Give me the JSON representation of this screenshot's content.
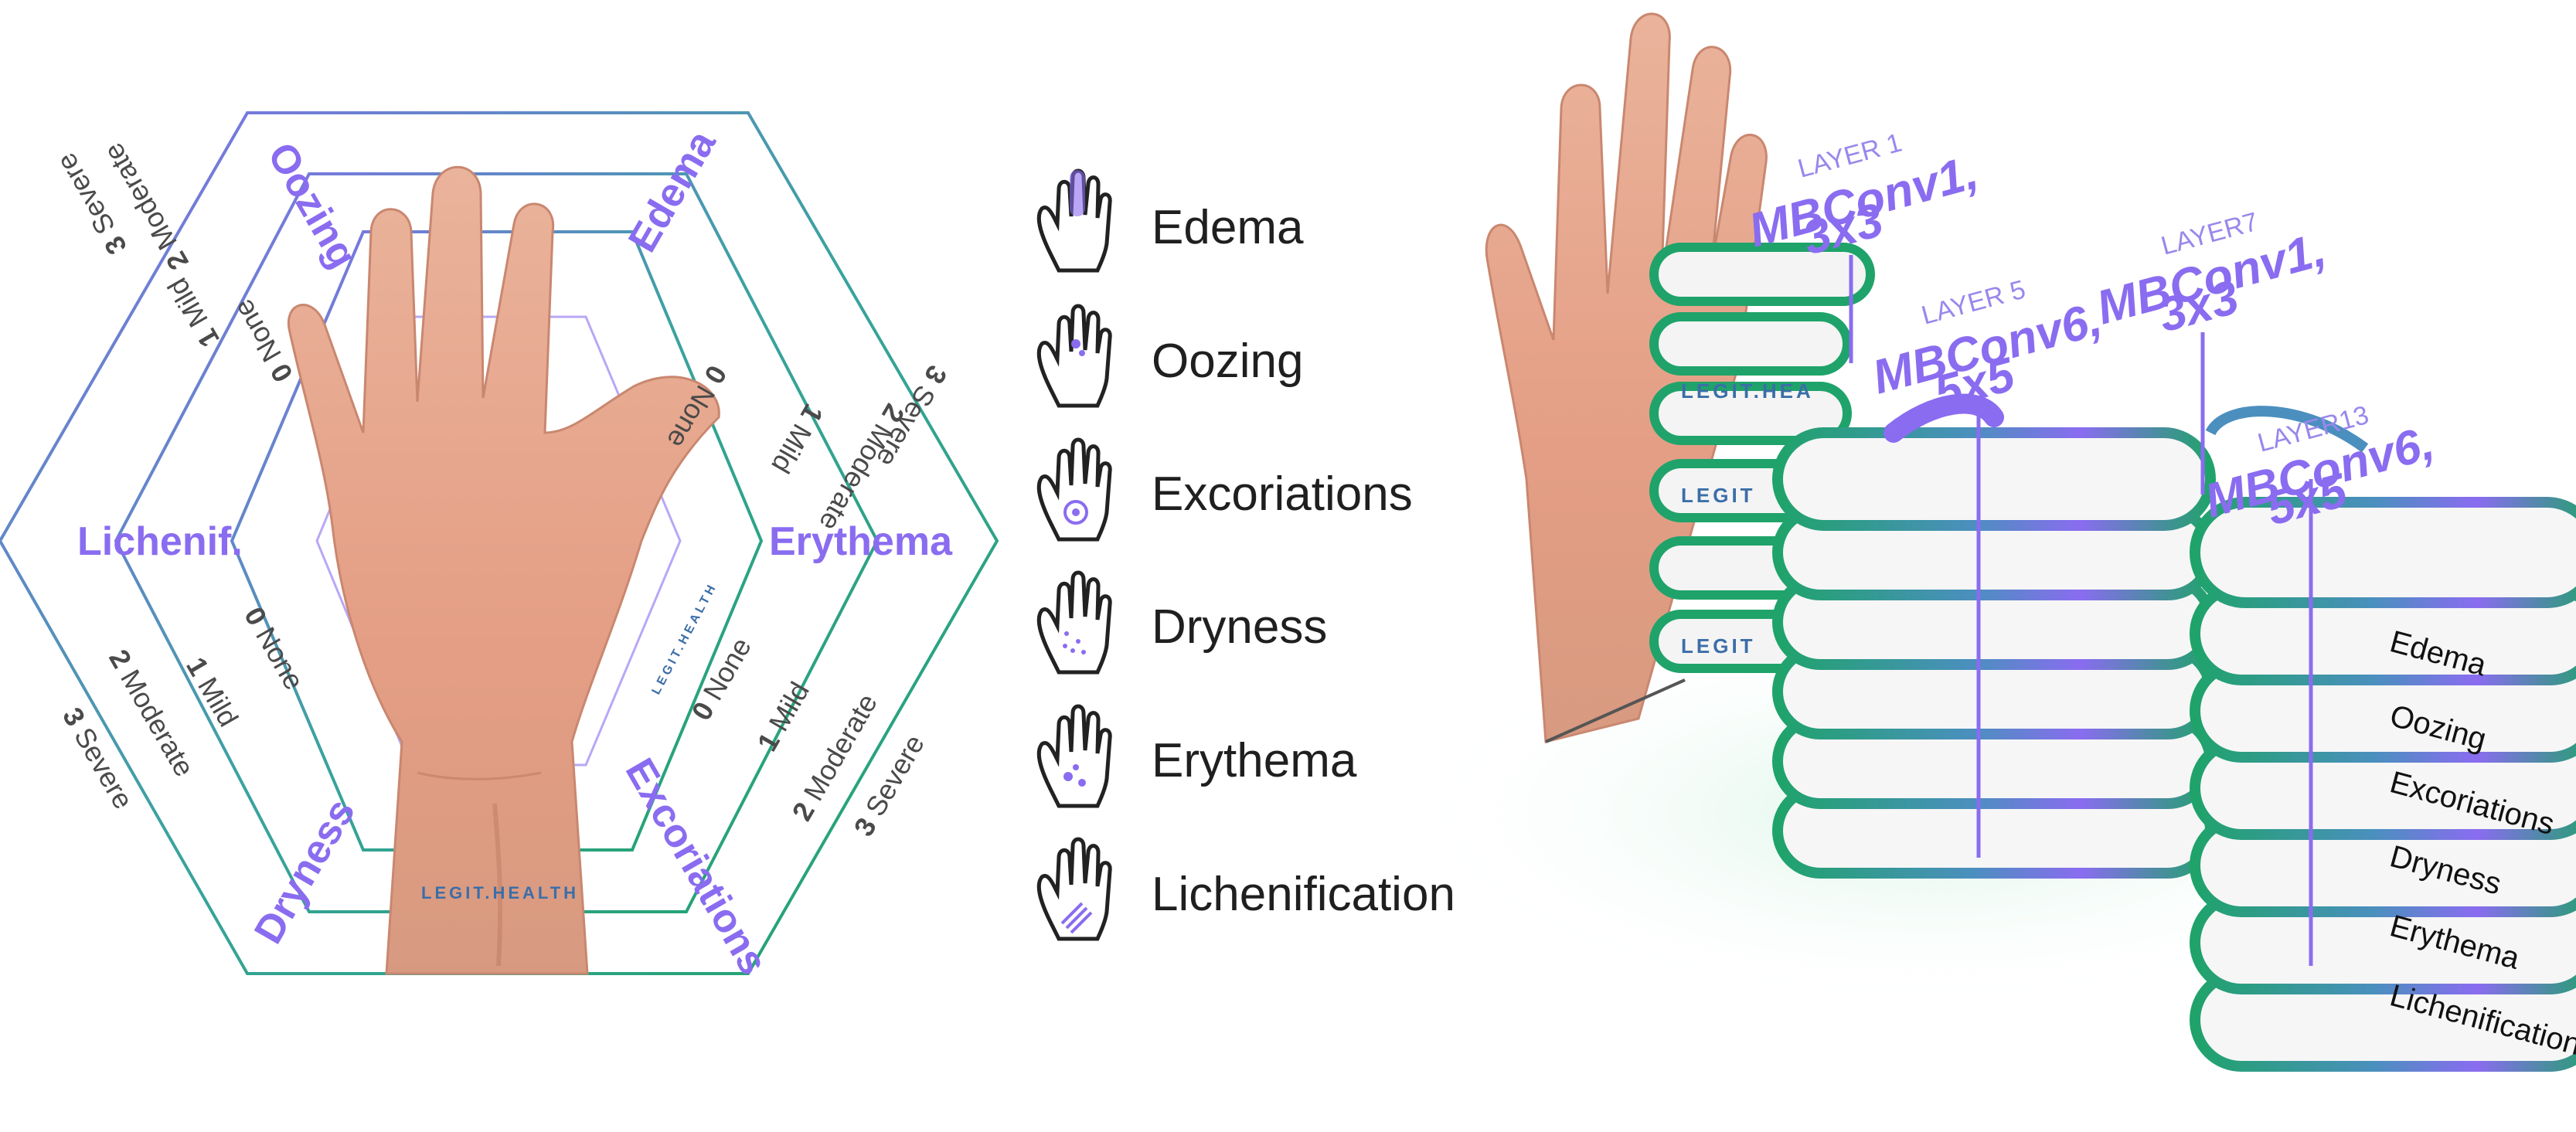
{
  "hexagon_diagram": {
    "categories": {
      "top_left": "Oozing",
      "top_right": "Edema",
      "left": "Lichenif.",
      "right": "Erythema",
      "bottom_left": "Dryness",
      "bottom_right": "Excoriations"
    },
    "severity_scale": [
      {
        "num": "0",
        "label": "None"
      },
      {
        "num": "1",
        "label": "Mild"
      },
      {
        "num": "2",
        "label": "Moderate"
      },
      {
        "num": "3",
        "label": "Severe"
      }
    ],
    "watermark": "LEGIT.HEALTH"
  },
  "legend": {
    "items": [
      {
        "label": "Edema",
        "icon": "hand-edema-icon"
      },
      {
        "label": "Oozing",
        "icon": "hand-oozing-icon"
      },
      {
        "label": "Excoriations",
        "icon": "hand-excoriations-icon"
      },
      {
        "label": "Dryness",
        "icon": "hand-dryness-icon"
      },
      {
        "label": "Erythema",
        "icon": "hand-erythema-icon"
      },
      {
        "label": "Lichenification",
        "icon": "hand-lichenification-icon"
      }
    ]
  },
  "network": {
    "layers": [
      {
        "small": "LAYER 1",
        "line1": "MBConv1,",
        "line2": "3x3"
      },
      {
        "small": "LAYER 5",
        "line1": "MBConv6,",
        "line2": "5x5"
      },
      {
        "small": "LAYER7",
        "line1": "MBConv1,",
        "line2": "3x3"
      },
      {
        "small": "LAYER13",
        "line1": "MBConv6,",
        "line2": "5x5"
      }
    ],
    "output_labels": [
      "Edema",
      "Oozing",
      "Excoriations",
      "Dryness",
      "Erythema",
      "Lichenification"
    ],
    "brand_tags": [
      "LEGIT.HEA",
      "LEGIT",
      "LEGIT"
    ]
  },
  "colors": {
    "purple": "#8a6cf0",
    "green": "#1fa36a",
    "teal": "#3aa3a0",
    "skin": "#e7a98f"
  }
}
